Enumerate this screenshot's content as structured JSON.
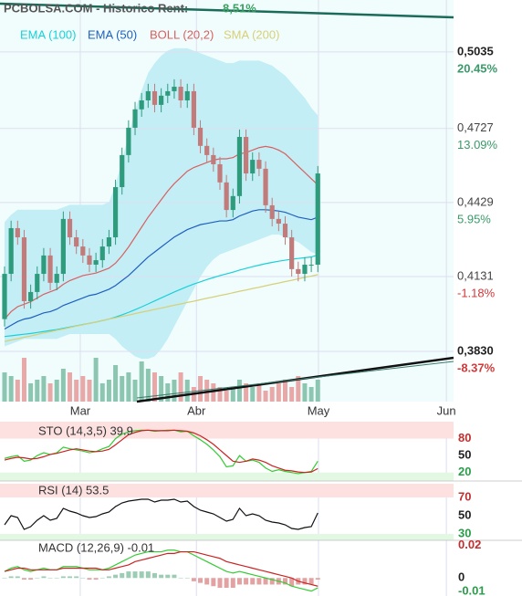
{
  "chart_data": [
    {
      "type": "candlestick",
      "title": "PCBOLSA.COM - Historico  Rent:",
      "title_value": "8,51%",
      "xlim": [
        -0.7,
        68.8
      ],
      "xticks": [
        {
          "value": 11.6,
          "label": "Mar"
        },
        {
          "value": 29.4,
          "label": "Abr"
        },
        {
          "value": 48.1,
          "label": "May"
        },
        {
          "value": 67.7,
          "label": "Jun"
        }
      ],
      "ylim": [
        0.3628,
        0.5244
      ],
      "yticks": [
        {
          "value": 0.5035,
          "label": "0,5035"
        },
        {
          "value": 0.4727,
          "label": "0,4727"
        },
        {
          "value": 0.4429,
          "label": "0,4429"
        },
        {
          "value": 0.4131,
          "label": "0,4131"
        },
        {
          "value": 0.383,
          "label": "0,3830"
        }
      ],
      "pct_labels": [
        "20.45%",
        "13.09%",
        "5.95%",
        "-1.18%",
        "-8.37%"
      ],
      "grid": true,
      "up_color": "#2e9c7c",
      "down_color": "#c27b7b",
      "open": [
        0.396,
        0.4142,
        0.4326,
        0.4289,
        0.4032,
        0.4069,
        0.4142,
        0.4216,
        0.4106,
        0.4142,
        0.4363,
        0.4289,
        0.4252,
        0.4216,
        0.4179,
        0.4197,
        0.4252,
        0.4289,
        0.4491,
        0.462,
        0.473,
        0.4804,
        0.484,
        0.4877,
        0.4822,
        0.4859,
        0.4877,
        0.4895,
        0.484,
        0.4877,
        0.473,
        0.4657,
        0.462,
        0.4583,
        0.451,
        0.4399,
        0.4455,
        0.4693,
        0.4546,
        0.4601,
        0.4565,
        0.4418,
        0.4363,
        0.4344,
        0.4289,
        0.4161,
        0.4142,
        0.4179,
        0.4179
      ],
      "high": [
        0.4172,
        0.4356,
        0.4356,
        0.4319,
        0.4099,
        0.4172,
        0.4246,
        0.4246,
        0.4172,
        0.4393,
        0.4393,
        0.4319,
        0.4282,
        0.4246,
        0.4227,
        0.4282,
        0.4319,
        0.4521,
        0.465,
        0.476,
        0.4834,
        0.487,
        0.4907,
        0.4907,
        0.4889,
        0.4907,
        0.4925,
        0.4925,
        0.4907,
        0.4907,
        0.476,
        0.4687,
        0.465,
        0.4613,
        0.454,
        0.4485,
        0.4723,
        0.4723,
        0.4631,
        0.4631,
        0.4595,
        0.4448,
        0.4393,
        0.4374,
        0.4319,
        0.4191,
        0.4209,
        0.4209,
        0.4576
      ],
      "low": [
        0.393,
        0.4112,
        0.4259,
        0.4002,
        0.4002,
        0.4039,
        0.4112,
        0.4076,
        0.4076,
        0.4112,
        0.4259,
        0.4222,
        0.4186,
        0.4149,
        0.4149,
        0.4167,
        0.4222,
        0.4259,
        0.4461,
        0.459,
        0.47,
        0.4774,
        0.481,
        0.4792,
        0.4792,
        0.4829,
        0.4847,
        0.481,
        0.481,
        0.47,
        0.4627,
        0.459,
        0.4553,
        0.448,
        0.4369,
        0.4369,
        0.4425,
        0.4516,
        0.4516,
        0.4535,
        0.4388,
        0.4333,
        0.4314,
        0.4259,
        0.4131,
        0.4112,
        0.4112,
        0.4149,
        0.4149
      ],
      "close": [
        0.4142,
        0.4326,
        0.4289,
        0.4032,
        0.4069,
        0.4142,
        0.4216,
        0.4106,
        0.4142,
        0.4363,
        0.4289,
        0.4252,
        0.4216,
        0.4179,
        0.4197,
        0.4252,
        0.4289,
        0.4491,
        0.462,
        0.473,
        0.4804,
        0.484,
        0.4877,
        0.4822,
        0.4859,
        0.4877,
        0.4895,
        0.484,
        0.4877,
        0.473,
        0.4657,
        0.462,
        0.4583,
        0.451,
        0.4399,
        0.4455,
        0.4693,
        0.4546,
        0.4601,
        0.4565,
        0.4418,
        0.4363,
        0.4344,
        0.4289,
        0.4161,
        0.4142,
        0.4179,
        0.4179,
        0.4546
      ],
      "bollinger": {
        "color": "#c4eef6",
        "upper": [
          0.435,
          0.438,
          0.44,
          0.44,
          0.44,
          0.44,
          0.44,
          0.44,
          0.44,
          0.441,
          0.442,
          0.442,
          0.442,
          0.442,
          0.442,
          0.442,
          0.443,
          0.45,
          0.46,
          0.47,
          0.48,
          0.488,
          0.495,
          0.499,
          0.502,
          0.504,
          0.505,
          0.505,
          0.505,
          0.504,
          0.503,
          0.502,
          0.501,
          0.5,
          0.499,
          0.499,
          0.5,
          0.5,
          0.5,
          0.5,
          0.499,
          0.498,
          0.496,
          0.494,
          0.491,
          0.488,
          0.485,
          0.481,
          0.478
        ],
        "lower": [
          0.385,
          0.386,
          0.387,
          0.388,
          0.388,
          0.388,
          0.388,
          0.388,
          0.388,
          0.389,
          0.39,
          0.39,
          0.39,
          0.39,
          0.39,
          0.39,
          0.39,
          0.388,
          0.385,
          0.383,
          0.381,
          0.38,
          0.38,
          0.381,
          0.384,
          0.388,
          0.393,
          0.398,
          0.403,
          0.408,
          0.413,
          0.417,
          0.42,
          0.422,
          0.423,
          0.424,
          0.425,
          0.426,
          0.427,
          0.428,
          0.429,
          0.43,
          0.43,
          0.429,
          0.428,
          0.427,
          0.425,
          0.423,
          0.422
        ]
      },
      "volume": {
        "ylim": [
          0,
          100
        ],
        "up_color": "#8cc6b0",
        "down_color": "#e8a8a8",
        "values": [
          40,
          35,
          30,
          60,
          25,
          30,
          35,
          25,
          30,
          45,
          40,
          30,
          35,
          30,
          60,
          25,
          30,
          50,
          35,
          40,
          30,
          55,
          45,
          40,
          35,
          25,
          30,
          40,
          30,
          20,
          35,
          30,
          25,
          20,
          15,
          20,
          30,
          25,
          20,
          25,
          15,
          20,
          25,
          30,
          20,
          35,
          25,
          20,
          30
        ]
      },
      "series": [
        {
          "name": "EMA (100)",
          "color": "#19d0d8",
          "values": [
            0.389,
            0.3893,
            0.3896,
            0.3899,
            0.3902,
            0.3906,
            0.391,
            0.3914,
            0.3918,
            0.3923,
            0.3928,
            0.3933,
            0.3938,
            0.3943,
            0.3948,
            0.3954,
            0.396,
            0.3968,
            0.3977,
            0.3987,
            0.3998,
            0.4009,
            0.4021,
            0.4033,
            0.4045,
            0.4057,
            0.4069,
            0.408,
            0.4091,
            0.4101,
            0.411,
            0.4119,
            0.4127,
            0.4135,
            0.4142,
            0.4149,
            0.4157,
            0.4164,
            0.4171,
            0.4177,
            0.4183,
            0.4188,
            0.4193,
            0.4197,
            0.4201,
            0.4204,
            0.4207,
            0.421,
            0.4218
          ]
        },
        {
          "name": "EMA (50)",
          "color": "#1f5fbf",
          "values": [
            0.392,
            0.3935,
            0.395,
            0.396,
            0.3965,
            0.3975,
            0.3985,
            0.399,
            0.4,
            0.4015,
            0.4025,
            0.4035,
            0.4045,
            0.4055,
            0.406,
            0.407,
            0.408,
            0.4095,
            0.4115,
            0.4135,
            0.416,
            0.4185,
            0.421,
            0.423,
            0.425,
            0.427,
            0.429,
            0.4305,
            0.432,
            0.433,
            0.434,
            0.4345,
            0.435,
            0.4355,
            0.4355,
            0.436,
            0.4375,
            0.4385,
            0.4395,
            0.44,
            0.44,
            0.4398,
            0.4395,
            0.439,
            0.438,
            0.437,
            0.4365,
            0.436,
            0.437
          ]
        },
        {
          "name": "BOLL (20,2)",
          "color": "#d86060",
          "values": [
            0.396,
            0.399,
            0.401,
            0.402,
            0.403,
            0.4045,
            0.406,
            0.407,
            0.408,
            0.41,
            0.4115,
            0.4125,
            0.4135,
            0.414,
            0.4145,
            0.4155,
            0.4165,
            0.4185,
            0.4215,
            0.425,
            0.429,
            0.433,
            0.437,
            0.4405,
            0.444,
            0.4475,
            0.4505,
            0.453,
            0.4555,
            0.457,
            0.458,
            0.459,
            0.46,
            0.4605,
            0.4605,
            0.461,
            0.4625,
            0.463,
            0.464,
            0.465,
            0.4655,
            0.465,
            0.464,
            0.4625,
            0.46,
            0.4575,
            0.455,
            0.4525,
            0.45
          ]
        },
        {
          "name": "SMA (200)",
          "color": "#d6d07a",
          "values": [
            0.387,
            0.3876,
            0.3881,
            0.3887,
            0.3892,
            0.3898,
            0.3904,
            0.3909,
            0.3915,
            0.392,
            0.3926,
            0.3932,
            0.3937,
            0.3943,
            0.3948,
            0.3954,
            0.396,
            0.3965,
            0.3971,
            0.3976,
            0.3982,
            0.3988,
            0.3993,
            0.3999,
            0.4004,
            0.401,
            0.4016,
            0.4021,
            0.4027,
            0.4032,
            0.4038,
            0.4044,
            0.4049,
            0.4055,
            0.406,
            0.4066,
            0.4072,
            0.4077,
            0.4083,
            0.4088,
            0.4094,
            0.41,
            0.4105,
            0.4111,
            0.4116,
            0.4122,
            0.4128,
            0.4133,
            0.4139
          ]
        }
      ]
    },
    {
      "type": "line",
      "title": "STO (14,3,5) 39.9",
      "xlim": [
        -0.7,
        68.8
      ],
      "ylim": [
        5,
        110
      ],
      "yticks": [
        80,
        50,
        20
      ],
      "bands": true,
      "series": [
        {
          "color": "#33cc33",
          "values": [
            45,
            48,
            50,
            40,
            42,
            50,
            55,
            52,
            55,
            65,
            62,
            60,
            58,
            55,
            57,
            62,
            66,
            80,
            88,
            92,
            94,
            95,
            95,
            93,
            94,
            95,
            95,
            92,
            93,
            85,
            78,
            70,
            60,
            48,
            30,
            32,
            50,
            40,
            42,
            38,
            28,
            22,
            25,
            22,
            20,
            18,
            20,
            22,
            40
          ]
        },
        {
          "color": "#cc2222",
          "values": [
            42,
            45,
            47,
            46,
            44,
            45,
            48,
            52,
            54,
            57,
            60,
            62,
            60,
            58,
            57,
            58,
            61,
            69,
            78,
            87,
            91,
            94,
            95,
            94,
            94,
            94,
            95,
            94,
            93,
            90,
            85,
            78,
            70,
            60,
            50,
            40,
            38,
            40,
            44,
            42,
            38,
            32,
            28,
            24,
            23,
            21,
            20,
            21,
            27
          ]
        }
      ]
    },
    {
      "type": "line",
      "title": "RSI (14) 53.5",
      "xlim": [
        -0.7,
        68.8
      ],
      "ylim": [
        23,
        85
      ],
      "yticks": [
        70,
        50,
        30
      ],
      "bands": true,
      "series": [
        {
          "color": "#111111",
          "values": [
            40,
            50,
            48,
            35,
            38,
            45,
            50,
            45,
            47,
            58,
            55,
            53,
            50,
            48,
            49,
            52,
            54,
            60,
            64,
            66,
            67,
            68,
            68,
            65,
            67,
            67,
            68,
            65,
            66,
            60,
            56,
            54,
            52,
            48,
            44,
            46,
            58,
            50,
            52,
            50,
            45,
            43,
            42,
            40,
            36,
            35,
            37,
            38,
            53
          ]
        }
      ]
    },
    {
      "type": "macd",
      "title": "MACD (12,26,9) -0.01",
      "xlim": [
        -0.7,
        68.8
      ],
      "ylim": [
        -0.011,
        0.023
      ],
      "yticks": [
        0.02,
        0,
        -0.01
      ],
      "bands": false,
      "histogram": {
        "up_color": "#9ccdb4",
        "down_color": "#e3a2a2",
        "values": [
          0,
          0.001,
          0.001,
          -0.001,
          -0.001,
          0,
          0.001,
          0,
          0,
          0.001,
          0.001,
          0.001,
          0,
          -0.001,
          -0.001,
          0,
          0.001,
          0.002,
          0.003,
          0.004,
          0.004,
          0.004,
          0.004,
          0.003,
          0.002,
          0.002,
          0.002,
          0,
          0,
          -0.002,
          -0.003,
          -0.004,
          -0.005,
          -0.006,
          -0.006,
          -0.006,
          -0.004,
          -0.004,
          -0.004,
          -0.004,
          -0.004,
          -0.004,
          -0.004,
          -0.004,
          -0.005,
          -0.004,
          -0.004,
          -0.004,
          -0.001
        ]
      },
      "series": [
        {
          "color": "#33cc33",
          "values": [
            0.004,
            0.006,
            0.007,
            0.005,
            0.004,
            0.005,
            0.006,
            0.005,
            0.005,
            0.007,
            0.007,
            0.007,
            0.006,
            0.005,
            0.005,
            0.005,
            0.006,
            0.008,
            0.01,
            0.012,
            0.014,
            0.015,
            0.016,
            0.016,
            0.016,
            0.017,
            0.017,
            0.016,
            0.016,
            0.014,
            0.012,
            0.01,
            0.008,
            0.006,
            0.004,
            0.003,
            0.004,
            0.003,
            0.002,
            0.001,
            0.0,
            -0.001,
            -0.002,
            -0.003,
            -0.005,
            -0.006,
            -0.007,
            -0.008,
            -0.006
          ]
        },
        {
          "color": "#cc2222",
          "values": [
            0.004,
            0.005,
            0.006,
            0.006,
            0.005,
            0.005,
            0.005,
            0.005,
            0.005,
            0.006,
            0.006,
            0.006,
            0.006,
            0.006,
            0.006,
            0.005,
            0.005,
            0.006,
            0.007,
            0.008,
            0.01,
            0.011,
            0.012,
            0.013,
            0.014,
            0.015,
            0.015,
            0.016,
            0.016,
            0.016,
            0.015,
            0.014,
            0.013,
            0.012,
            0.01,
            0.009,
            0.008,
            0.007,
            0.006,
            0.005,
            0.004,
            0.003,
            0.002,
            0.001,
            0.0,
            -0.002,
            -0.003,
            -0.004,
            -0.005
          ]
        }
      ]
    }
  ]
}
